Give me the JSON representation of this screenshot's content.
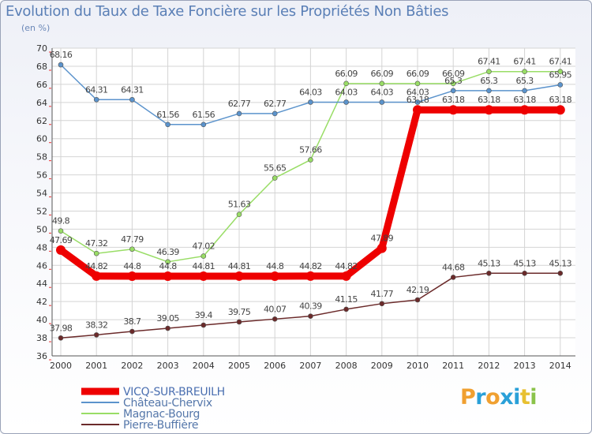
{
  "header": {
    "title": "Evolution du Taux de Taxe Foncière sur les Propriétés Non Bâties",
    "unit": "(en %)"
  },
  "logo": {
    "text": "Proxiti"
  },
  "chart_data": {
    "type": "line",
    "title": "Evolution du Taux de Taxe Foncière sur les Propriétés Non Bâties",
    "xlabel": "",
    "ylabel": "(en %)",
    "ylim": [
      36,
      70
    ],
    "yticks": [
      36,
      38,
      40,
      42,
      44,
      46,
      48,
      50,
      52,
      54,
      56,
      58,
      60,
      62,
      64,
      66,
      68,
      70
    ],
    "grid": true,
    "legend_position": "bottom-left",
    "x": [
      "2000",
      "2001",
      "2002",
      "2003",
      "2004",
      "2005",
      "2006",
      "2007",
      "2008",
      "2009",
      "2010",
      "2011",
      "2012",
      "2013",
      "2014"
    ],
    "series": [
      {
        "name": "Pierre-Buffière",
        "color": "#6b2a2a",
        "values": [
          37.98,
          38.32,
          38.7,
          39.05,
          39.4,
          39.75,
          40.07,
          40.39,
          41.15,
          41.77,
          42.19,
          44.68,
          45.13,
          45.13,
          45.13
        ],
        "labels": [
          "37.98",
          "38.32",
          "38.7",
          "39.05",
          "39.4",
          "39.75",
          "40.07",
          "40.39",
          "41.15",
          "41.77",
          "42.19",
          "44.68",
          "45.13",
          "45.13",
          "45.13"
        ]
      },
      {
        "name": "Magnac-Bourg",
        "color": "#99dd66",
        "values": [
          49.8,
          47.32,
          47.79,
          46.39,
          47.02,
          51.63,
          55.65,
          57.66,
          66.09,
          66.09,
          66.09,
          66.09,
          67.41,
          67.41,
          67.41
        ],
        "labels": [
          "49.8",
          "47.32",
          "47.79",
          "46.39",
          "47.02",
          "51.63",
          "55.65",
          "57.66",
          "66.09",
          "66.09",
          "66.09",
          "66.09",
          "67.41",
          "67.41",
          "67.41"
        ]
      },
      {
        "name": "Château-Chervix",
        "color": "#5b93cc",
        "values": [
          68.16,
          64.31,
          64.31,
          61.56,
          61.56,
          62.77,
          62.77,
          64.03,
          64.03,
          64.03,
          64.03,
          65.3,
          65.3,
          65.3,
          65.95
        ],
        "labels": [
          "68.16",
          "64.31",
          "64.31",
          "61.56",
          "61.56",
          "62.77",
          "62.77",
          "64.03",
          "64.03",
          "64.03",
          "64.03",
          "65.3",
          "65.3",
          "65.3",
          "65.95"
        ]
      },
      {
        "name": "VICQ-SUR-BREUILH",
        "color": "#ee0000",
        "values": [
          47.69,
          44.82,
          44.8,
          44.8,
          44.81,
          44.81,
          44.8,
          44.82,
          44.82,
          47.89,
          63.18,
          63.18,
          63.18,
          63.18,
          63.18
        ],
        "labels": [
          "47.69",
          "44.82",
          "44.8",
          "44.8",
          "44.81",
          "44.81",
          "44.8",
          "44.82",
          "44.82",
          "47.89",
          "63.18",
          "63.18",
          "63.18",
          "63.18",
          "63.18"
        ]
      }
    ],
    "legend_order": [
      "VICQ-SUR-BREUILH",
      "Château-Chervix",
      "Magnac-Bourg",
      "Pierre-Buffière"
    ]
  }
}
